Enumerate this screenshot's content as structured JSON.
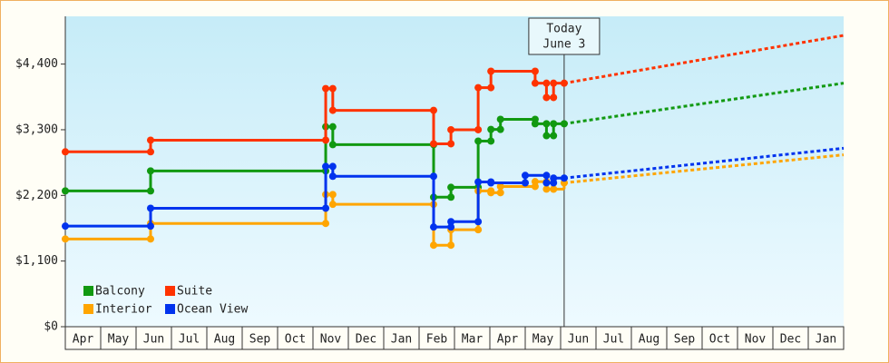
{
  "chart_data": {
    "type": "step-line",
    "categories": [
      "Apr",
      "May",
      "Jun",
      "Jul",
      "Aug",
      "Sep",
      "Oct",
      "Nov",
      "Dec",
      "Jan",
      "Feb",
      "Mar",
      "Apr",
      "May",
      "Jun",
      "Jul",
      "Aug",
      "Sep",
      "Oct",
      "Nov",
      "Dec",
      "Jan"
    ],
    "xlim": [
      0,
      22
    ],
    "ylim": [
      0,
      5200
    ],
    "yticks": [
      {
        "value": 0,
        "label": "$0"
      },
      {
        "value": 1100,
        "label": "$1,100"
      },
      {
        "value": 2200,
        "label": "$2,200"
      },
      {
        "value": 3300,
        "label": "$3,300"
      },
      {
        "value": 4400,
        "label": "$4,400"
      }
    ],
    "legend": "lower-left",
    "annotation": {
      "lines": [
        "Today",
        "June 3"
      ],
      "x": 14.1
    },
    "series": [
      {
        "name": "Balcony",
        "color": "#119911",
        "x": [
          0,
          2.41,
          7.36,
          7.56,
          10.41,
          10.9,
          11.67,
          12.03,
          12.3,
          13.28,
          13.6,
          13.8,
          14.1
        ],
        "values": [
          2275,
          2610,
          3350,
          3050,
          2170,
          2335,
          3110,
          3305,
          3475,
          3400,
          3200,
          3400,
          3400
        ],
        "forecast": 4080
      },
      {
        "name": "Suite",
        "color": "#ff3300",
        "x": [
          0,
          2.41,
          7.36,
          7.56,
          10.41,
          10.9,
          11.67,
          12.03,
          13.28,
          13.6,
          13.8,
          14.1
        ],
        "values": [
          2930,
          3125,
          3990,
          3625,
          3064,
          3300,
          4005,
          4280,
          4080,
          3840,
          4080,
          4080
        ],
        "forecast": 4880
      },
      {
        "name": "Interior",
        "color": "#ffa500",
        "x": [
          0,
          2.41,
          7.36,
          7.56,
          10.41,
          10.9,
          11.67,
          12.03,
          12.3,
          13.28,
          13.6,
          13.8,
          14.1
        ],
        "values": [
          1470,
          1730,
          2215,
          2050,
          1365,
          1625,
          2275,
          2245,
          2350,
          2430,
          2305,
          2305,
          2410
        ],
        "forecast": 2880
      },
      {
        "name": "Ocean View",
        "color": "#0033ee",
        "x": [
          0,
          2.41,
          7.36,
          7.56,
          10.41,
          10.9,
          11.67,
          12.03,
          13.0,
          13.6,
          13.8,
          14.1
        ],
        "values": [
          1685,
          1985,
          2685,
          2520,
          1670,
          1760,
          2425,
          2410,
          2535,
          2410,
          2490,
          2490
        ],
        "forecast": 2990
      }
    ]
  }
}
